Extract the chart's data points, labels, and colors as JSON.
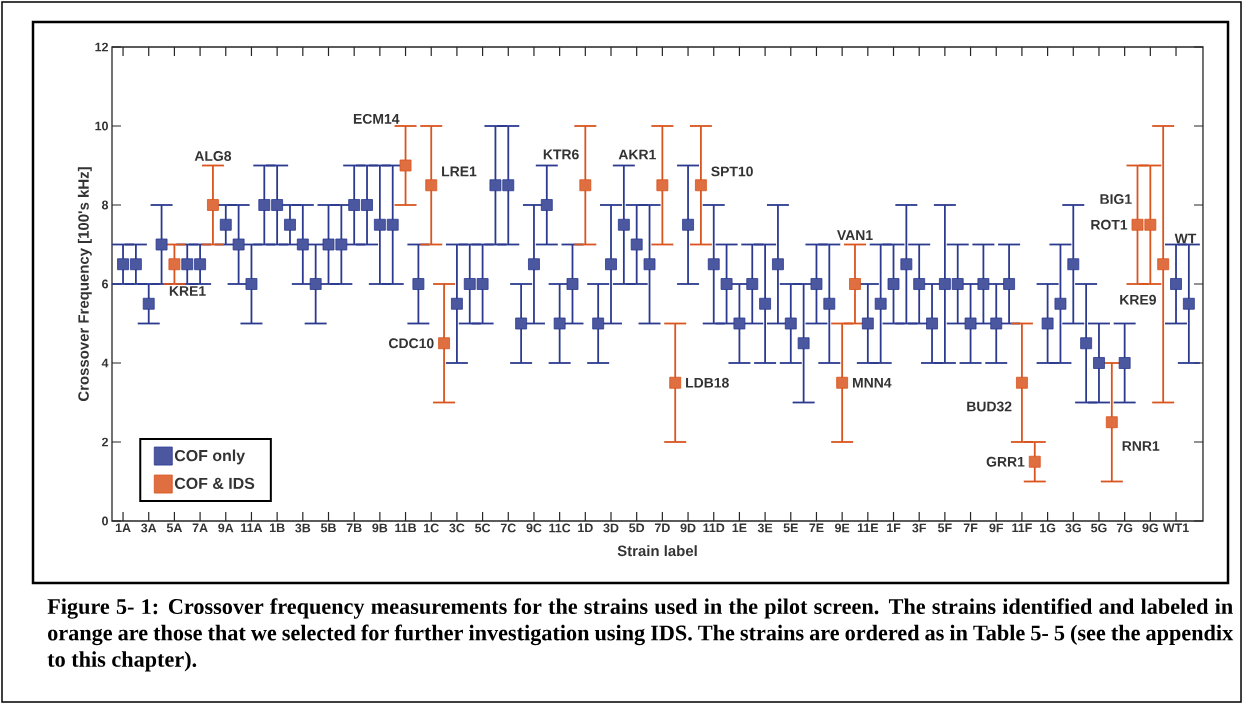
{
  "chart_data": {
    "type": "scatter",
    "xlabel": "Strain label",
    "ylabel": "Crossover Frequency [100's kHz]",
    "categories": [
      "1A",
      null,
      "3A",
      null,
      "5A",
      null,
      "7A",
      null,
      "9A",
      null,
      "11A",
      null,
      "1B",
      null,
      "3B",
      null,
      "5B",
      null,
      "7B",
      null,
      "9B",
      null,
      "11B",
      null,
      "1C",
      null,
      "3C",
      null,
      "5C",
      null,
      "7C",
      null,
      "9C",
      null,
      "11C",
      null,
      "1D",
      null,
      "3D",
      null,
      "5D",
      null,
      "7D",
      null,
      "9D",
      null,
      "11D",
      null,
      "1E",
      null,
      "3E",
      null,
      "5E",
      null,
      "7E",
      null,
      "9E",
      null,
      "11E",
      null,
      "1F",
      null,
      "3F",
      null,
      "5F",
      null,
      "7F",
      null,
      "9F",
      null,
      "11F",
      null,
      "1G",
      null,
      "3G",
      null,
      "5G",
      null,
      "7G",
      null,
      "9G",
      null,
      "WT1",
      null
    ],
    "series": [
      {
        "name": "COF only",
        "color": "#2b3a8f",
        "values": [
          6.5,
          6.5,
          5.5,
          7,
          null,
          6.5,
          6.5,
          null,
          7.5,
          7,
          6,
          8,
          8,
          7.5,
          7,
          6,
          7,
          7,
          8,
          8,
          7.5,
          7.5,
          null,
          6,
          null,
          null,
          5.5,
          6,
          6,
          8.5,
          8.5,
          5,
          6.5,
          8,
          5,
          6,
          null,
          5,
          6.5,
          7.5,
          7,
          6.5,
          null,
          null,
          7.5,
          null,
          6.5,
          6,
          5,
          6,
          5.5,
          6.5,
          5,
          4.5,
          6,
          5.5,
          null,
          null,
          5,
          5.5,
          6,
          6.5,
          6,
          5,
          6,
          6,
          5,
          6,
          5,
          6,
          null,
          null,
          5,
          5.5,
          6.5,
          4.5,
          4,
          null,
          4,
          null,
          null,
          null,
          6,
          5.5
        ],
        "errors": [
          0.5,
          0.5,
          0.5,
          1,
          null,
          0.5,
          0.5,
          null,
          0.5,
          1,
          1,
          1,
          1,
          0.5,
          1,
          1,
          1,
          1,
          1,
          1,
          1.5,
          1.5,
          null,
          1,
          null,
          null,
          1.5,
          1,
          1,
          1.5,
          1.5,
          1,
          1.5,
          1,
          1,
          1,
          null,
          1,
          1.5,
          1.5,
          1,
          1.5,
          null,
          null,
          1.5,
          null,
          1.5,
          1,
          1,
          1,
          1.5,
          1.5,
          1,
          1.5,
          1,
          1.5,
          null,
          null,
          1,
          1.5,
          1,
          1.5,
          1,
          1,
          2,
          1,
          1,
          1,
          1,
          1,
          null,
          null,
          1,
          1.5,
          1.5,
          1.5,
          1,
          null,
          1,
          null,
          null,
          null,
          1,
          1.5
        ]
      },
      {
        "name": "COF & IDS",
        "color": "#d9541e",
        "values": [
          null,
          null,
          null,
          null,
          6.5,
          null,
          null,
          8,
          null,
          null,
          null,
          null,
          null,
          null,
          null,
          null,
          null,
          null,
          null,
          null,
          null,
          null,
          9,
          null,
          8.5,
          4.5,
          null,
          null,
          null,
          null,
          null,
          null,
          null,
          null,
          null,
          null,
          8.5,
          null,
          null,
          null,
          null,
          null,
          8.5,
          3.5,
          null,
          8.5,
          null,
          null,
          null,
          null,
          null,
          null,
          null,
          null,
          null,
          null,
          3.5,
          6,
          null,
          null,
          null,
          null,
          null,
          null,
          null,
          null,
          null,
          null,
          null,
          null,
          3.5,
          1.5,
          null,
          null,
          null,
          null,
          null,
          2.5,
          null,
          7.5,
          7.5,
          6.5,
          null,
          null
        ],
        "errors": [
          null,
          null,
          null,
          null,
          0.5,
          null,
          null,
          1,
          null,
          null,
          null,
          null,
          null,
          null,
          null,
          null,
          null,
          null,
          null,
          null,
          null,
          null,
          1,
          null,
          1.5,
          1.5,
          null,
          null,
          null,
          null,
          null,
          null,
          null,
          null,
          null,
          null,
          1.5,
          null,
          null,
          null,
          null,
          null,
          1.5,
          1.5,
          null,
          1.5,
          null,
          null,
          null,
          null,
          null,
          null,
          null,
          null,
          null,
          null,
          1.5,
          1,
          null,
          null,
          null,
          null,
          null,
          null,
          null,
          null,
          null,
          null,
          null,
          null,
          1.5,
          0.5,
          null,
          null,
          null,
          null,
          null,
          1.5,
          null,
          1.5,
          1.5,
          3.5,
          null,
          null
        ],
        "value_labels": [
          null,
          null,
          null,
          null,
          "KRE1",
          null,
          null,
          "ALG8",
          null,
          null,
          null,
          null,
          null,
          null,
          null,
          null,
          null,
          null,
          null,
          null,
          null,
          null,
          "ECM14",
          null,
          "LRE1",
          "CDC10",
          null,
          null,
          null,
          null,
          null,
          null,
          null,
          null,
          null,
          null,
          "KTR6",
          null,
          null,
          null,
          null,
          null,
          "AKR1",
          "LDB18",
          null,
          "SPT10",
          null,
          null,
          null,
          null,
          null,
          null,
          null,
          null,
          null,
          null,
          "MNN4",
          "VAN1",
          null,
          null,
          null,
          null,
          null,
          null,
          null,
          null,
          null,
          null,
          null,
          null,
          "BUD32",
          "GRR1",
          null,
          null,
          null,
          null,
          null,
          "RNR1",
          null,
          "ROT1",
          "BIG1",
          "KRE9",
          null,
          null
        ]
      }
    ],
    "ylim": [
      0,
      12
    ],
    "yticks": [
      0,
      2,
      4,
      6,
      8,
      10,
      12
    ],
    "marker": "square",
    "grid": false,
    "legend": "bottom left",
    "annotations": [
      {
        "text": "WT",
        "x": "WT1",
        "y": 7
      },
      "Figure 5- 1: Crossover frequency measurements for the strains used in the pilot screen.  The strains identified and labeled in orange are those that we selected for further investigation using IDS.  The strains are ordered as in Table 5- 5 (see the appendix to this chapter)."
    ]
  }
}
